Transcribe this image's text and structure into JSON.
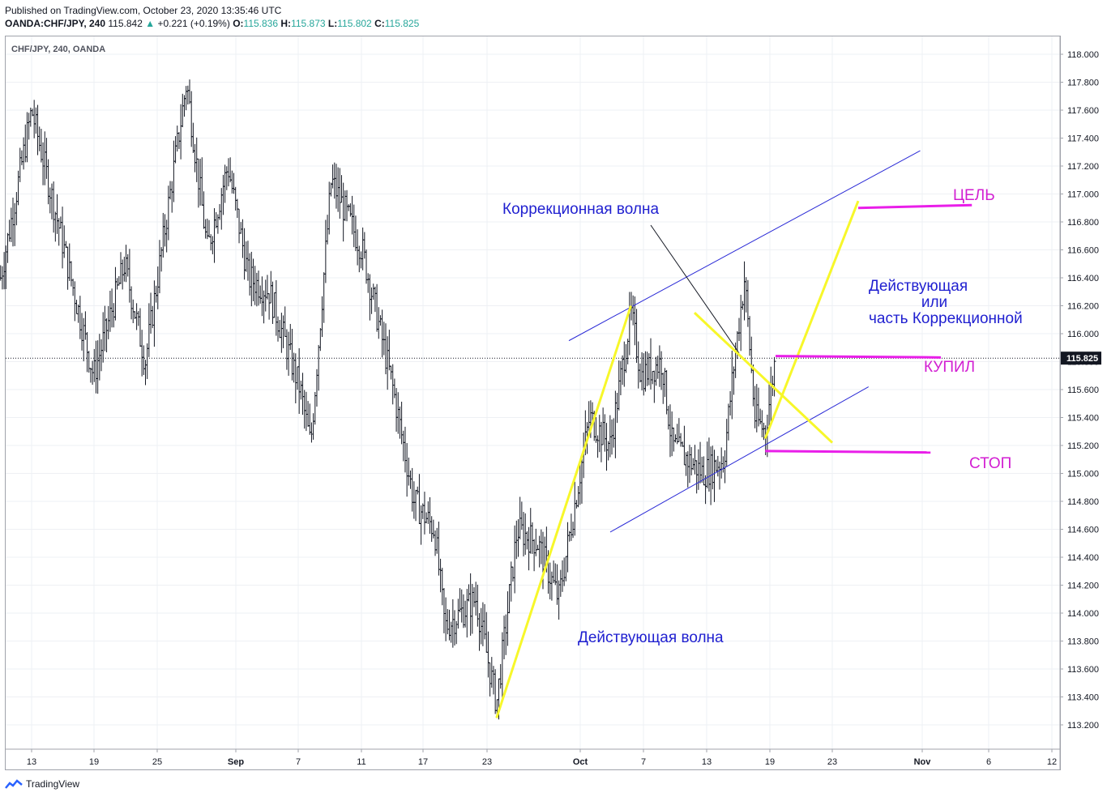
{
  "header": {
    "published": "Published on TradingView.com, October 23, 2020 13:35:46 UTC",
    "symbol": "OANDA:CHF/JPY, 240",
    "last": "115.842",
    "change": "+0.221 (+0.19%)",
    "o_label": "O:",
    "o_value": "115.836",
    "h_label": "H:",
    "h_value": "115.873",
    "l_label": "L:",
    "l_value": "115.802",
    "c_label": "C:",
    "c_value": "115.825"
  },
  "footer": {
    "brand": "TradingView"
  },
  "chart_data": {
    "type": "ohlc-bar",
    "title": "CHF/JPY, 240, OANDA",
    "ylim": [
      113.1,
      118.1
    ],
    "yticks": [
      "118.000",
      "117.800",
      "117.600",
      "117.400",
      "117.200",
      "117.000",
      "116.800",
      "116.600",
      "116.400",
      "116.200",
      "116.000",
      "115.800",
      "115.600",
      "115.400",
      "115.200",
      "115.000",
      "114.800",
      "114.600",
      "114.400",
      "114.200",
      "114.000",
      "113.800",
      "113.600",
      "113.400",
      "113.200"
    ],
    "xticks": [
      "13",
      "19",
      "25",
      "Sep",
      "7",
      "11",
      "17",
      "23",
      "Oct",
      "7",
      "13",
      "19",
      "23",
      "Nov",
      "6",
      "12"
    ],
    "current_price": "115.825",
    "swing_path": [
      {
        "date": "Sep 27",
        "price": 113.25
      },
      {
        "date": "Oct 10",
        "price": 116.2
      },
      {
        "date": "Oct 23",
        "price": 115.25
      }
    ],
    "price_anchors": [
      {
        "date": "Aug 10",
        "price": 116.4
      },
      {
        "date": "Aug 13",
        "price": 117.6
      },
      {
        "date": "Aug 19",
        "price": 115.7
      },
      {
        "date": "Aug 22",
        "price": 116.5
      },
      {
        "date": "Aug 24",
        "price": 115.8
      },
      {
        "date": "Aug 28",
        "price": 117.8
      },
      {
        "date": "Aug 30",
        "price": 116.6
      },
      {
        "date": "Sep 1",
        "price": 117.2
      },
      {
        "date": "Sep 3",
        "price": 116.4
      },
      {
        "date": "Sep 5",
        "price": 116.3
      },
      {
        "date": "Sep 8",
        "price": 115.6
      },
      {
        "date": "Sep 9",
        "price": 115.2
      },
      {
        "date": "Sep 11",
        "price": 117.1
      },
      {
        "date": "Sep 14",
        "price": 116.6
      },
      {
        "date": "Sep 17",
        "price": 115.6
      },
      {
        "date": "Sep 19",
        "price": 114.8
      },
      {
        "date": "Sep 21",
        "price": 114.6
      },
      {
        "date": "Sep 22",
        "price": 113.9
      },
      {
        "date": "Sep 25",
        "price": 114.1
      },
      {
        "date": "Sep 27",
        "price": 113.35
      },
      {
        "date": "Sep 29",
        "price": 114.6
      },
      {
        "date": "Oct 1",
        "price": 114.5
      },
      {
        "date": "Oct 3",
        "price": 114.1
      },
      {
        "date": "Oct 6",
        "price": 115.4
      },
      {
        "date": "Oct 8",
        "price": 115.2
      },
      {
        "date": "Oct 10",
        "price": 116.15
      },
      {
        "date": "Oct 11",
        "price": 115.7
      },
      {
        "date": "Oct 13",
        "price": 115.8
      },
      {
        "date": "Oct 14",
        "price": 115.2
      },
      {
        "date": "Oct 17",
        "price": 115.0
      },
      {
        "date": "Oct 19",
        "price": 115.1
      },
      {
        "date": "Oct 20",
        "price": 115.8
      },
      {
        "date": "Oct 21",
        "price": 116.4
      },
      {
        "date": "Oct 22",
        "price": 115.4
      },
      {
        "date": "Oct 23",
        "price": 115.3
      },
      {
        "date": "Oct 24",
        "price": 115.84
      }
    ],
    "annotations": {
      "correction_wave": "Коррекционная волна",
      "impulse_wave": "Действующая волна",
      "alt_line1": "Действующая",
      "alt_line2": "или",
      "alt_line3": "часть Коррекционной",
      "target": "ЦЕЛЬ",
      "bought": "КУПИЛ",
      "stop": "СТОП"
    },
    "colors": {
      "bars": "#131722",
      "channel": "#2929d6",
      "swing": "#f7f72a",
      "levels": "#e91ee9",
      "annotation_text": "#1f1fd0",
      "level_text": "#d21ed2"
    }
  }
}
